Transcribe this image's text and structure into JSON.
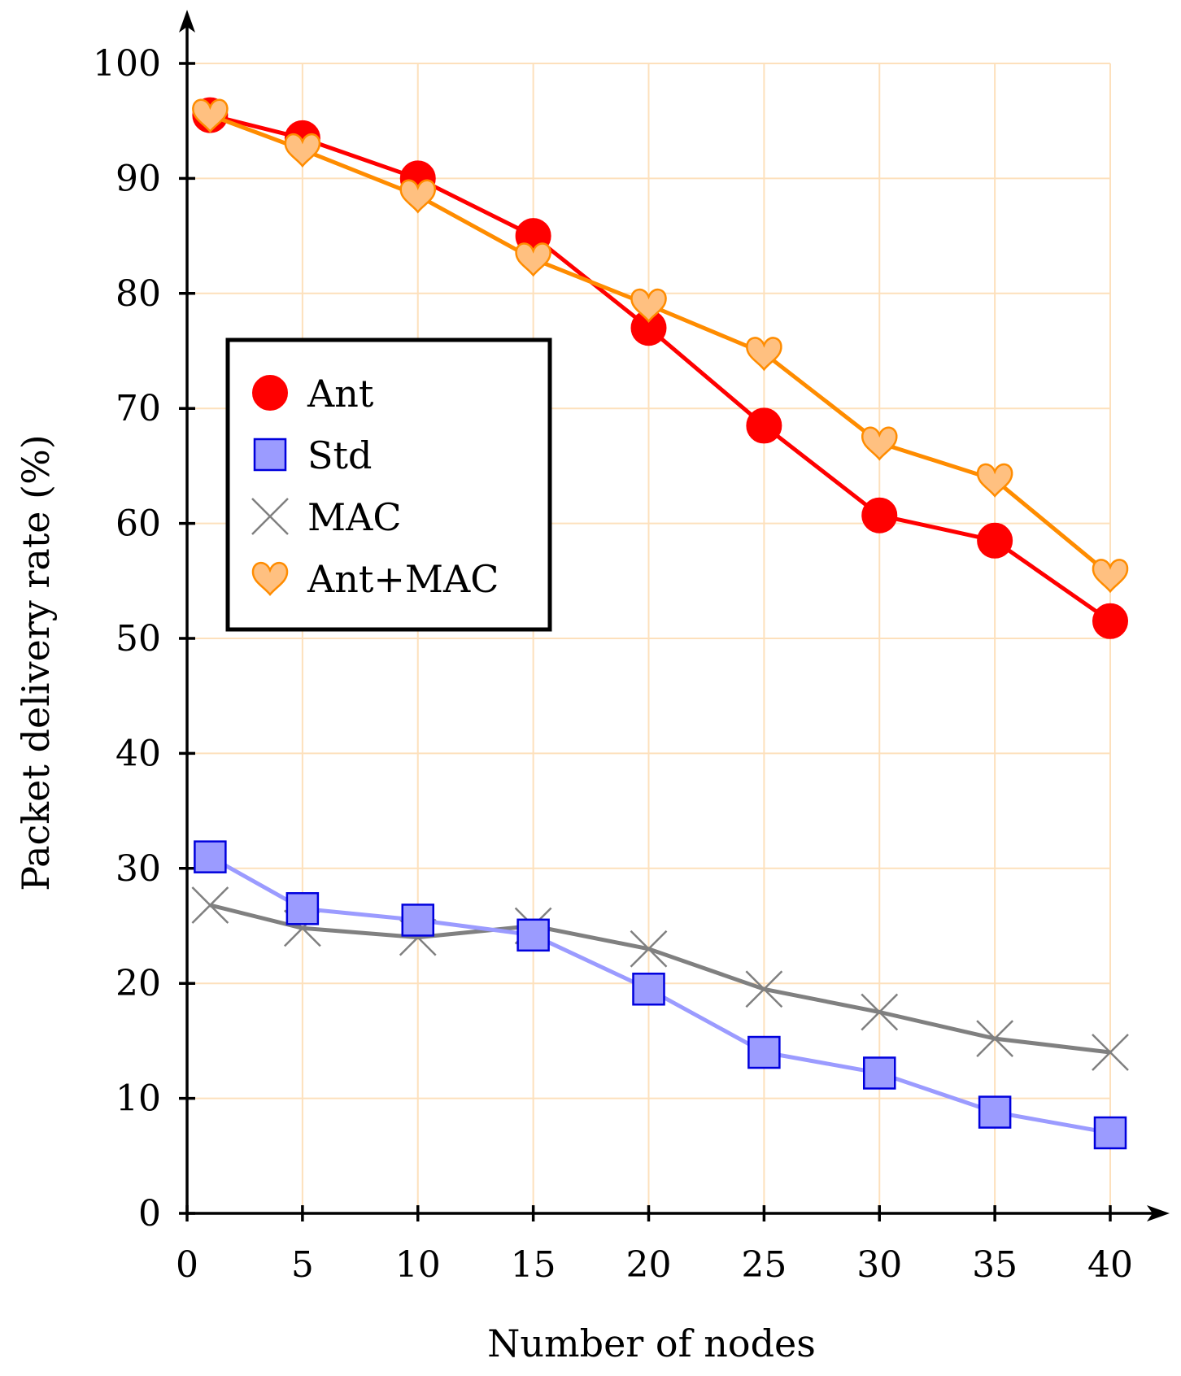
{
  "chart_data": {
    "type": "line",
    "title": "",
    "xlabel": "Number of nodes",
    "ylabel": "Packet delivery rate (%)",
    "xlim": [
      0,
      40
    ],
    "ylim": [
      0,
      100
    ],
    "xticks": [
      "0",
      "5",
      "10",
      "15",
      "20",
      "25",
      "30",
      "35",
      "40"
    ],
    "yticks": [
      "0",
      "10",
      "20",
      "30",
      "40",
      "50",
      "60",
      "70",
      "80",
      "90",
      "100"
    ],
    "grid": true,
    "legend_position": "center-left",
    "x": [
      1,
      5,
      10,
      15,
      20,
      25,
      30,
      35,
      40
    ],
    "series": [
      {
        "name": "Ant",
        "marker": "circle",
        "color": "#ff0000",
        "fill": "#ff0000",
        "values": [
          95.5,
          93.5,
          90.0,
          85.0,
          77.0,
          68.5,
          60.7,
          58.5,
          51.5
        ]
      },
      {
        "name": "Std",
        "marker": "square",
        "color": "#9b9bff",
        "fill": "#9b9bff",
        "edge": "#0000dd",
        "values": [
          31.0,
          26.5,
          25.5,
          24.2,
          19.5,
          14.0,
          12.2,
          8.8,
          7.0
        ]
      },
      {
        "name": "MAC",
        "marker": "x",
        "color": "#808080",
        "fill": "#808080",
        "values": [
          26.8,
          24.8,
          24.0,
          25.0,
          23.0,
          19.5,
          17.5,
          15.2,
          14.0
        ]
      },
      {
        "name": "Ant+MAC",
        "marker": "heart",
        "color": "#ff8c00",
        "fill": "#ffc080",
        "edge": "#ff8c00",
        "values": [
          95.5,
          92.5,
          88.5,
          83.0,
          79.0,
          74.8,
          67.0,
          63.8,
          55.5
        ]
      }
    ]
  }
}
